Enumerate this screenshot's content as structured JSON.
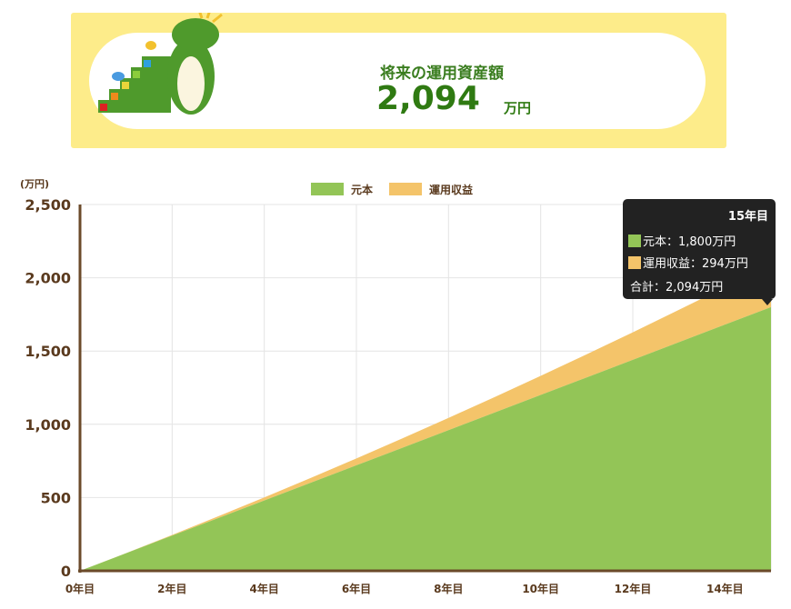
{
  "banner": {
    "title": "将来の運用資産額",
    "amount": "2,094",
    "unit": "万円"
  },
  "tooltip": {
    "title": "15年目",
    "principal": "元本：1,800万円",
    "returns": "運用収益：294万円",
    "total": "合計：2,094万円"
  },
  "chart_data": {
    "type": "area",
    "stacked": true,
    "ylabel": "(万円)",
    "ylim": [
      0,
      2500
    ],
    "yticks": [
      "0",
      "500",
      "1,000",
      "1,500",
      "2,000",
      "2,500"
    ],
    "xlim": [
      0,
      15
    ],
    "xticks": [
      "0年目",
      "2年目",
      "4年目",
      "6年目",
      "8年目",
      "10年目",
      "12年目",
      "14年目"
    ],
    "grid": true,
    "legend": "top",
    "x": [
      0,
      1,
      2,
      3,
      4,
      5,
      6,
      7,
      8,
      9,
      10,
      11,
      12,
      13,
      14,
      15
    ],
    "series": [
      {
        "name": "元本",
        "color": "#93c557",
        "values": [
          0,
          120,
          240,
          360,
          480,
          600,
          720,
          840,
          960,
          1080,
          1200,
          1320,
          1440,
          1560,
          1680,
          1800
        ]
      },
      {
        "name": "運用収益",
        "color": "#f4c46a",
        "values": [
          0,
          1,
          5,
          12,
          21,
          33,
          47,
          64,
          84,
          106,
          131,
          158,
          188,
          221,
          256,
          294
        ]
      }
    ]
  }
}
